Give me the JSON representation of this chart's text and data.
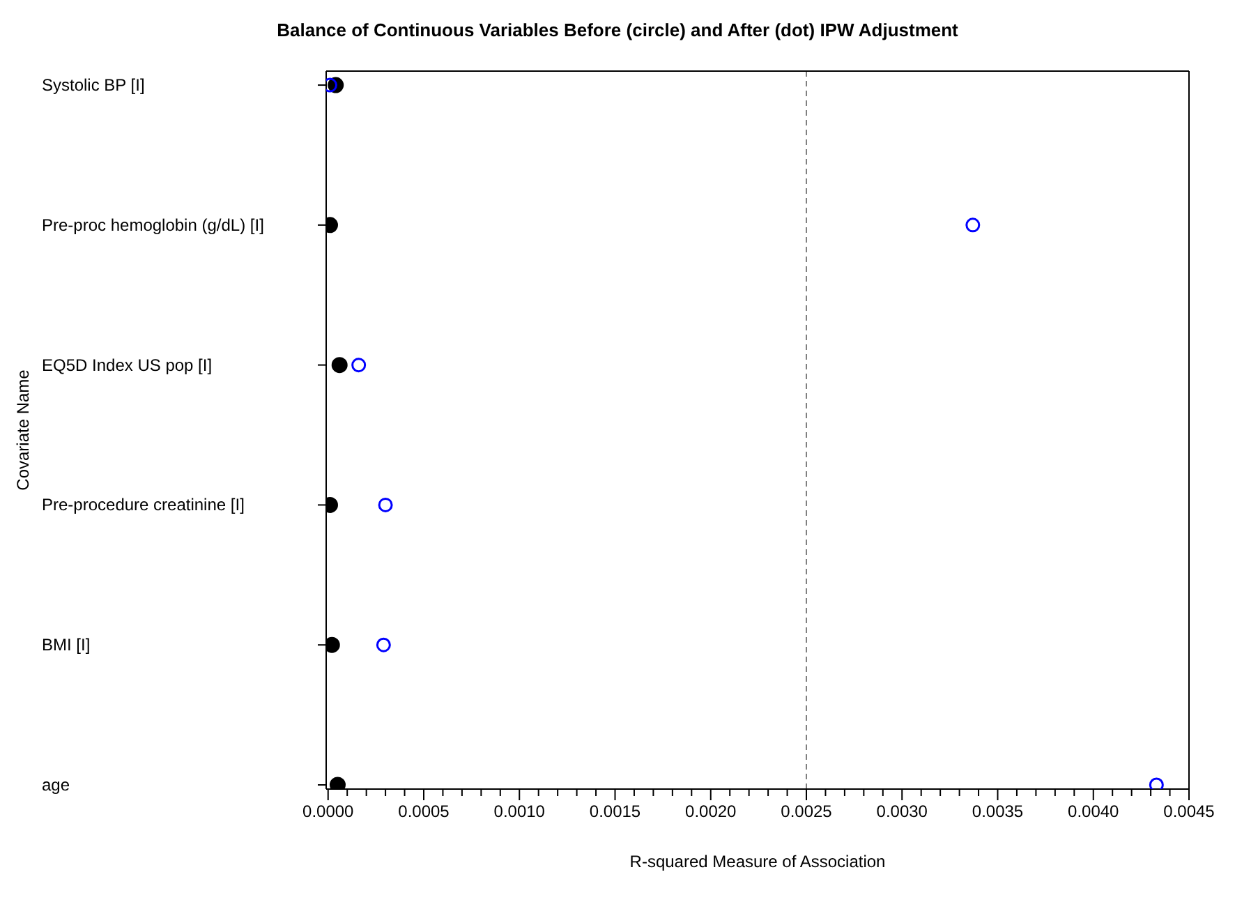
{
  "chart_data": {
    "type": "scatter",
    "orientation": "horizontal",
    "title": "Balance of Continuous Variables Before (circle) and After (dot) IPW Adjustment",
    "xlabel": "R-squared Measure of Association",
    "ylabel": "Covariate Name",
    "categories": [
      "Systolic BP [I]",
      "Pre-proc hemoglobin (g/dL) [I]",
      "EQ5D Index US pop [I]",
      "Pre-procedure creatinine [I]",
      "BMI [I]",
      "age"
    ],
    "series": [
      {
        "color": "#0000ff",
        "marker": "circle",
        "values": [
          1e-05,
          0.00337,
          0.00016,
          0.0003,
          0.00029,
          0.00433
        ]
      },
      {
        "color": "#000000",
        "marker": "circle",
        "values": [
          4e-05,
          1e-05,
          6e-05,
          1e-05,
          2e-05,
          5e-05
        ]
      }
    ],
    "xlim": [
      -1e-05,
      0.0045
    ],
    "xticks": [
      {
        "value": 0,
        "label": "0.0000"
      },
      {
        "value": 0.0001,
        "label": null
      },
      {
        "value": 0.0002,
        "label": null
      },
      {
        "value": 0.0003,
        "label": null
      },
      {
        "value": 0.0004,
        "label": null
      },
      {
        "value": 0.0005,
        "label": "0.0005"
      },
      {
        "value": 0.0006,
        "label": null
      },
      {
        "value": 0.0007,
        "label": null
      },
      {
        "value": 0.0008,
        "label": null
      },
      {
        "value": 0.0009,
        "label": null
      },
      {
        "value": 0.001,
        "label": "0.0010"
      },
      {
        "value": 0.0011,
        "label": null
      },
      {
        "value": 0.0012,
        "label": null
      },
      {
        "value": 0.0013,
        "label": null
      },
      {
        "value": 0.0014,
        "label": null
      },
      {
        "value": 0.0015,
        "label": "0.0015"
      },
      {
        "value": 0.0016,
        "label": null
      },
      {
        "value": 0.0017,
        "label": null
      },
      {
        "value": 0.0018,
        "label": null
      },
      {
        "value": 0.0019,
        "label": null
      },
      {
        "value": 0.002,
        "label": "0.0020"
      },
      {
        "value": 0.0021,
        "label": null
      },
      {
        "value": 0.0022,
        "label": null
      },
      {
        "value": 0.0023,
        "label": null
      },
      {
        "value": 0.0024,
        "label": null
      },
      {
        "value": 0.0025,
        "label": "0.0025"
      },
      {
        "value": 0.0026,
        "label": null
      },
      {
        "value": 0.0027,
        "label": null
      },
      {
        "value": 0.0028,
        "label": null
      },
      {
        "value": 0.0029,
        "label": null
      },
      {
        "value": 0.003,
        "label": "0.0030"
      },
      {
        "value": 0.0031,
        "label": null
      },
      {
        "value": 0.0032,
        "label": null
      },
      {
        "value": 0.0033,
        "label": null
      },
      {
        "value": 0.0034,
        "label": null
      },
      {
        "value": 0.0035,
        "label": "0.0035"
      },
      {
        "value": 0.0036,
        "label": null
      },
      {
        "value": 0.0037,
        "label": null
      },
      {
        "value": 0.0038,
        "label": null
      },
      {
        "value": 0.0039,
        "label": null
      },
      {
        "value": 0.004,
        "label": "0.0040"
      },
      {
        "value": 0.0041,
        "label": null
      },
      {
        "value": 0.0042,
        "label": null
      },
      {
        "value": 0.0043,
        "label": null
      },
      {
        "value": 0.0044,
        "label": null
      },
      {
        "value": 0.0045,
        "label": "0.0045"
      }
    ],
    "ref_lines": [
      {
        "axis": "x",
        "value": 0.0025,
        "color": "#808080",
        "line_style": "dashed"
      }
    ],
    "grid": false,
    "legend": false
  }
}
